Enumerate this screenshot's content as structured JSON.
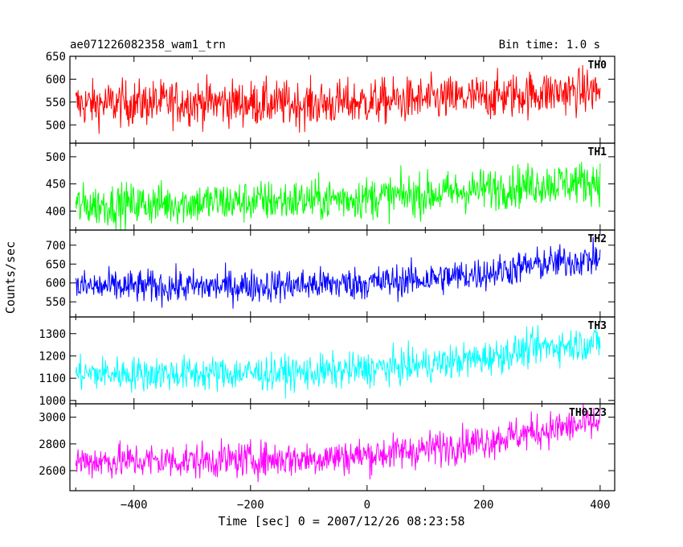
{
  "header": {
    "title": "ae071226082358_wam1_trn",
    "bin_time": "Bin time: 1.0 s"
  },
  "chart_data": {
    "type": "line",
    "title": "ae071226082358_wam1_trn",
    "xlabel": "Time [sec] 0 = 2007/12/26 08:23:58",
    "ylabel": "Counts/sec",
    "xlim": [
      -510,
      425
    ],
    "x_ticks": [
      -400,
      -200,
      0,
      200,
      400
    ],
    "x_tick_labels": [
      "−400",
      "−200",
      "0",
      "200",
      "400"
    ],
    "x_range": [
      -500,
      400
    ],
    "grid": false,
    "series": [
      {
        "name": "TH0",
        "color": "#ff0000",
        "ylim": [
          460,
          650
        ],
        "y_ticks": [
          500,
          550,
          600,
          650
        ],
        "trend_x": [
          -500,
          -300,
          -100,
          0,
          100,
          200,
          300,
          400
        ],
        "trend_y": [
          545,
          550,
          545,
          550,
          555,
          560,
          570,
          575
        ],
        "noise_amplitude": 45
      },
      {
        "name": "TH1",
        "color": "#00ff00",
        "ylim": [
          365,
          525
        ],
        "y_ticks": [
          400,
          450,
          500
        ],
        "trend_x": [
          -500,
          -300,
          -100,
          0,
          100,
          200,
          300,
          400
        ],
        "trend_y": [
          410,
          415,
          420,
          425,
          430,
          440,
          450,
          455
        ],
        "noise_amplitude": 35
      },
      {
        "name": "TH2",
        "color": "#0000ff",
        "ylim": [
          510,
          740
        ],
        "y_ticks": [
          550,
          600,
          650,
          700
        ],
        "trend_x": [
          -500,
          -300,
          -100,
          0,
          100,
          200,
          300,
          400
        ],
        "trend_y": [
          590,
          590,
          595,
          600,
          610,
          625,
          650,
          665
        ],
        "noise_amplitude": 40
      },
      {
        "name": "TH3",
        "color": "#00ffff",
        "ylim": [
          985,
          1375
        ],
        "y_ticks": [
          1000,
          1100,
          1200,
          1300
        ],
        "trend_x": [
          -500,
          -300,
          -100,
          0,
          100,
          200,
          300,
          400
        ],
        "trend_y": [
          1120,
          1120,
          1125,
          1140,
          1160,
          1190,
          1240,
          1260
        ],
        "noise_amplitude": 70
      },
      {
        "name": "TH0123",
        "color": "#ff00ff",
        "ylim": [
          2450,
          3100
        ],
        "y_ticks": [
          2600,
          2800,
          3000
        ],
        "trend_x": [
          -500,
          -300,
          -100,
          0,
          100,
          200,
          300,
          400
        ],
        "trend_y": [
          2670,
          2675,
          2690,
          2715,
          2760,
          2820,
          2900,
          2960
        ],
        "noise_amplitude": 120
      }
    ]
  }
}
